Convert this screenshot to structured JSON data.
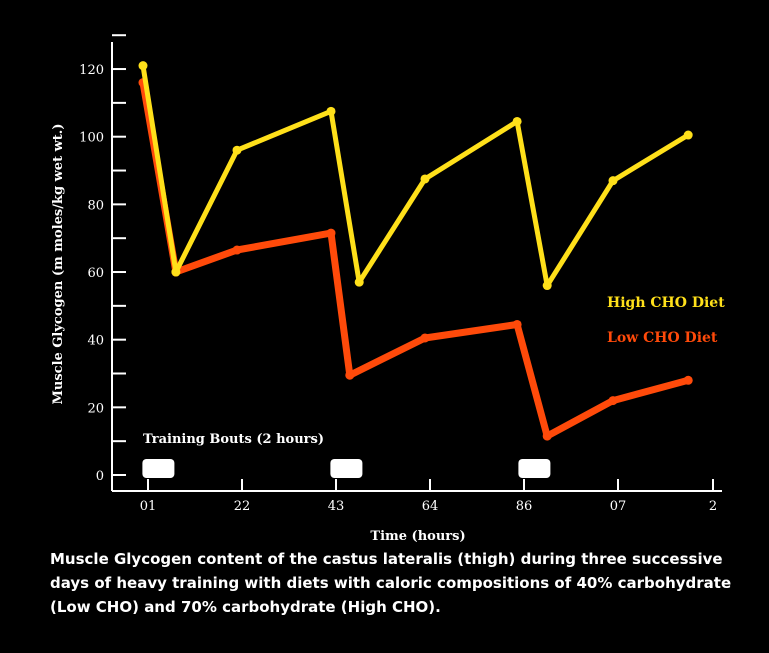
{
  "chart_data": {
    "type": "line",
    "xlabel": "Time (hours)",
    "ylabel": "Muscle Glycogen (m moles/kg wet wt.)",
    "ylim": [
      0,
      130
    ],
    "yticks": [
      0,
      20,
      40,
      60,
      80,
      100,
      120
    ],
    "xtick_labels": [
      "01",
      "22",
      "43",
      "64",
      "86",
      "07",
      "2"
    ],
    "series": [
      {
        "name": "High CHO Diet",
        "color": "#ffe01a",
        "points": [
          [
            0.0,
            121
          ],
          [
            0.35,
            60
          ],
          [
            1.0,
            96
          ],
          [
            2.0,
            107.5
          ],
          [
            2.3,
            57
          ],
          [
            3.0,
            87.5
          ],
          [
            3.98,
            104.5
          ],
          [
            4.3,
            56
          ],
          [
            5.0,
            87
          ],
          [
            5.8,
            100.5
          ]
        ]
      },
      {
        "name": "Low CHO Diet",
        "color": "#ff4a0a",
        "points": [
          [
            0.0,
            116
          ],
          [
            0.35,
            60
          ],
          [
            1.0,
            66.5
          ],
          [
            2.0,
            71.5
          ],
          [
            2.2,
            29.5
          ],
          [
            3.0,
            40.5
          ],
          [
            3.98,
            44.5
          ],
          [
            4.3,
            11.5
          ],
          [
            5.0,
            22
          ],
          [
            5.8,
            28
          ]
        ]
      }
    ],
    "annotation": "Training Bouts (2 hours)",
    "training_bouts": [
      0.1,
      2.1,
      4.1
    ]
  },
  "caption": "Muscle Glycogen content of the castus lateralis (thigh) during three successive days of heavy training with diets with caloric compositions of 40% carbohydrate (Low CHO) and 70% carbohydrate (High CHO)."
}
